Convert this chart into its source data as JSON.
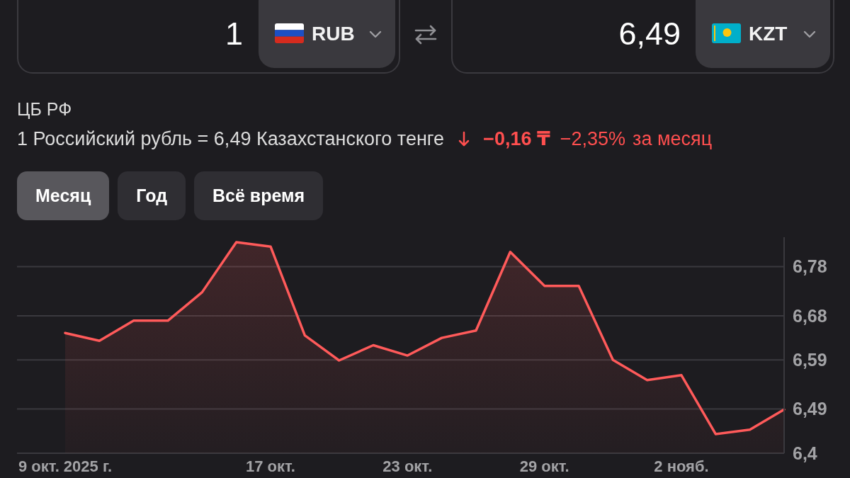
{
  "chart_data": {
    "type": "area",
    "annotations": [
      "1",
      "RUB",
      "6,49",
      "KZT",
      "ЦБ РФ",
      "1 Российский рубль = 6,49 Казахстанского тенге",
      "−0,16 ₸",
      "−2,35%",
      "за месяц",
      "Месяц",
      "Год",
      "Всё время"
    ],
    "categories": [
      "9 окт. 2025 г.",
      null,
      null,
      null,
      null,
      null,
      "17 окт.",
      null,
      null,
      null,
      "23 окт.",
      null,
      null,
      null,
      "29 окт.",
      null,
      null,
      null,
      "2 нояб.",
      null,
      null,
      null
    ],
    "values": [
      6.645,
      6.629,
      6.67,
      6.67,
      6.728,
      6.83,
      6.821,
      6.64,
      6.589,
      6.62,
      6.599,
      6.635,
      6.65,
      6.81,
      6.741,
      6.741,
      6.59,
      6.549,
      6.559,
      6.439,
      6.448,
      6.489
    ],
    "color": "#ff5a5a",
    "ylim": [
      6.4,
      6.84
    ],
    "yticks": [
      {
        "value": 6.4,
        "label": "6,4"
      },
      {
        "value": 6.49,
        "label": "6,49"
      },
      {
        "value": 6.59,
        "label": "6,59"
      },
      {
        "value": 6.68,
        "label": "6,68"
      },
      {
        "value": 6.78,
        "label": "6,78"
      }
    ],
    "grid": "y"
  }
}
